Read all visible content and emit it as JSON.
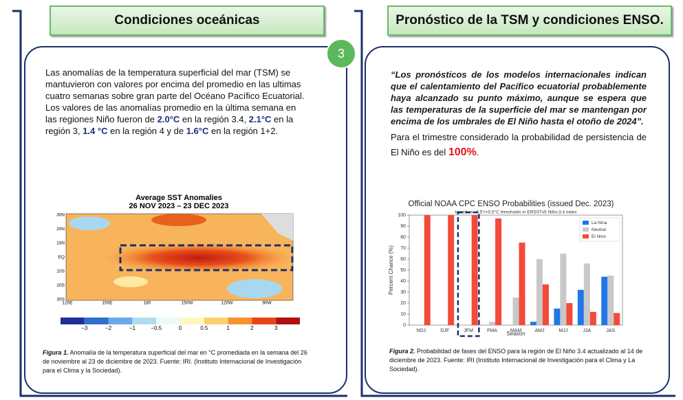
{
  "left_panel": {
    "header": "Condiciones oceánicas",
    "paragraph1": "Las anomalías de la  temperatura superficial del mar (TSM) se mantuvieron con valores por encima del promedio en las ultimas cuatro semanas sobre gran parte del  Océano Pacífico Ecuatorial.",
    "paragraph2": [
      "Los valores de las anomalías promedio en la última semana en las regiones Niño fueron de ",
      "2.0°C",
      " en la región 3.4, ",
      "2.1°C",
      " en la región 3, ",
      "1.4 °C",
      " en la región 4 y de ",
      "1.6°C",
      " en la región 1+2."
    ],
    "map": {
      "title": "Average SST Anomalies",
      "subtitle": "26 NOV 2023 – 23 DEC 2023",
      "lat_labels": [
        "30N",
        "20N",
        "10N",
        "EQ",
        "10S",
        "20S",
        "30S"
      ],
      "lon_labels": [
        "120E",
        "150E",
        "180",
        "150W",
        "120W",
        "90W"
      ],
      "colorbar_labels": [
        "−3",
        "−2",
        "−1",
        "−0.5",
        "0",
        "0.5",
        "1",
        "2",
        "3"
      ]
    },
    "caption_label": "Figura 1.",
    "caption": "Anomalía de la temperatura superficial del mar en °C promediada en la semana del 26 de noviembre al 23 de diciembre de 2023. Fuente: IRI. (Instituto Internacional de Investigación para el Clima y la Sociedad)."
  },
  "badge": "3",
  "right_panel": {
    "header": "Pronóstico de la TSM y condiciones ENSO.",
    "quote": "“Los pronósticos de los modelos internacionales indican que el calentamiento del Pacífico ecuatorial probablemente haya alcanzado su punto máximo, aunque se espera que las temperaturas de la superficie del mar se mantengan por encima de los umbrales de El Niño hasta el otoño de 2024”.",
    "paragraph": [
      "Para el trimestre considerado la probabilidad de persistencia de El Niño es del ",
      "100%",
      "."
    ],
    "caption_label": "Figura 2.",
    "caption": "Probabilidad de fases del ENSO para la región de El Niño 3.4 actualizado al 14 de diciembre de 2023. Fuente: IRI (Instituto Internacional de Investigación para el Clima y La Sociedad)."
  },
  "chart_data": {
    "type": "bar",
    "title": "Official NOAA CPC ENSO Probabilities (issued Dec. 2023)",
    "subtitle": "based on -0.5°/+0.5°C thresholds in ERSSTv5 Niño-3.4 index",
    "x_label": "Season",
    "y_label": "Percent Chance (%)",
    "categories": [
      "NDJ",
      "DJF",
      "JFM",
      "FMA",
      "MAM",
      "AMJ",
      "MJJ",
      "JJA",
      "JAS"
    ],
    "series": [
      {
        "name": "La Nina",
        "color": "#1f77e8",
        "values": [
          0,
          0,
          0,
          0,
          0,
          3,
          15,
          32,
          44
        ]
      },
      {
        "name": "Neutral",
        "color": "#c8c8c8",
        "values": [
          0,
          0,
          0,
          3,
          25,
          60,
          65,
          56,
          45
        ]
      },
      {
        "name": "El Nino",
        "color": "#f24b3a",
        "values": [
          100,
          100,
          100,
          97,
          75,
          37,
          20,
          12,
          11
        ]
      }
    ],
    "ylim": [
      0,
      100
    ],
    "yticks": [
      0,
      10,
      20,
      30,
      40,
      50,
      60,
      70,
      80,
      90,
      100
    ],
    "legend": "upper right",
    "grid": false
  }
}
